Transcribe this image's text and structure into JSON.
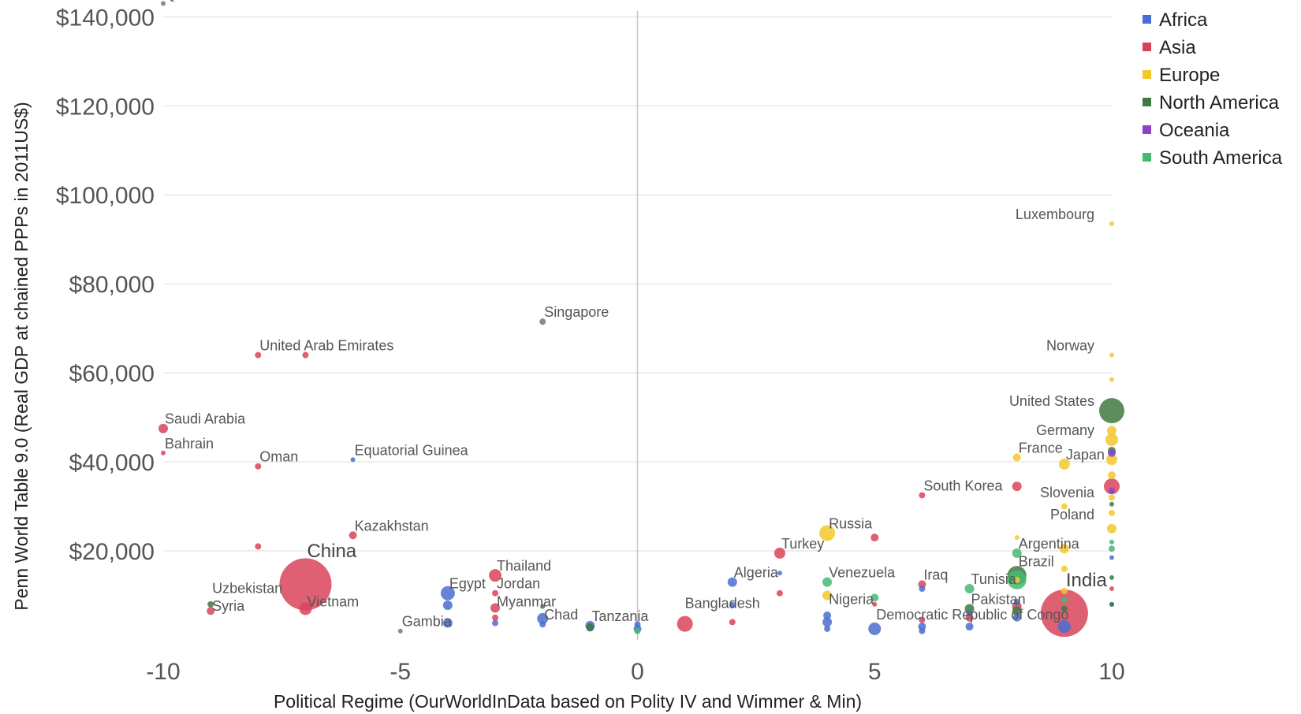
{
  "chart_data": {
    "type": "scatter",
    "title": "",
    "xlabel": "Political Regime (OurWorldInData based on Polity IV and Wimmer & Min)",
    "ylabel": "Penn World Table 9.0 (Real GDP at chained PPPs in 2011US$)",
    "xlim": [
      -10,
      10
    ],
    "ylim": [
      0,
      142000
    ],
    "x_ticks": [
      -10,
      -5,
      0,
      5,
      10
    ],
    "y_ticks": [
      20000,
      40000,
      60000,
      80000,
      100000,
      120000,
      140000
    ],
    "y_tick_labels": [
      "$20,000",
      "$40,000",
      "$60,000",
      "$80,000",
      "$100,000",
      "$120,000",
      "$140,000"
    ],
    "x_tick_labels": [
      "-10",
      "-5",
      "0",
      "5",
      "10"
    ],
    "grid": true,
    "legend_position": "top-right",
    "series": [
      {
        "name": "Africa",
        "color": "#4a6fd0",
        "points": [
          {
            "x": -4,
            "y": 10500,
            "r": 9
          },
          {
            "x": -4,
            "y": 7800,
            "r": 6
          },
          {
            "x": -4,
            "y": 3800,
            "r": 6
          },
          {
            "x": -3,
            "y": 3800,
            "r": 4
          },
          {
            "x": -2,
            "y": 4800,
            "r": 7
          },
          {
            "x": -2,
            "y": 3500,
            "r": 4
          },
          {
            "x": -1,
            "y": 3200,
            "r": 6
          },
          {
            "x": 0,
            "y": 2500,
            "r": 5
          },
          {
            "x": 0,
            "y": 3500,
            "r": 4
          },
          {
            "x": -6,
            "y": 40500,
            "r": 3
          },
          {
            "x": 2,
            "y": 13000,
            "r": 6
          },
          {
            "x": 2,
            "y": 7800,
            "r": 4
          },
          {
            "x": 3,
            "y": 15000,
            "r": 3
          },
          {
            "x": 4,
            "y": 4000,
            "r": 6
          },
          {
            "x": 4,
            "y": 2500,
            "r": 4
          },
          {
            "x": 4,
            "y": 5500,
            "r": 5
          },
          {
            "x": 5,
            "y": 2500,
            "r": 8
          },
          {
            "x": 6,
            "y": 3000,
            "r": 5
          },
          {
            "x": 6,
            "y": 2000,
            "r": 4
          },
          {
            "x": 6,
            "y": 11500,
            "r": 4
          },
          {
            "x": 7,
            "y": 3000,
            "r": 5
          },
          {
            "x": 7,
            "y": 6000,
            "r": 4
          },
          {
            "x": 8,
            "y": 5000,
            "r": 5
          },
          {
            "x": 8,
            "y": 8500,
            "r": 4
          },
          {
            "x": 9,
            "y": 3000,
            "r": 8
          },
          {
            "x": 10,
            "y": 18500,
            "r": 3
          },
          {
            "x": 10,
            "y": 8000,
            "r": 3
          },
          {
            "x": -1,
            "y": 2800,
            "r": 5
          }
        ]
      },
      {
        "name": "Asia",
        "color": "#d9435a",
        "points": [
          {
            "x": -7,
            "y": 12500,
            "r": 33
          },
          {
            "x": -7,
            "y": 7000,
            "r": 8
          },
          {
            "x": -8,
            "y": 64000,
            "r": 4
          },
          {
            "x": -7,
            "y": 64000,
            "r": 4
          },
          {
            "x": -10,
            "y": 47500,
            "r": 6
          },
          {
            "x": -10,
            "y": 42000,
            "r": 3
          },
          {
            "x": -8,
            "y": 39000,
            "r": 4
          },
          {
            "x": -8,
            "y": 21000,
            "r": 4
          },
          {
            "x": -6,
            "y": 23500,
            "r": 5
          },
          {
            "x": -9,
            "y": 6500,
            "r": 5
          },
          {
            "x": -3,
            "y": 14500,
            "r": 8
          },
          {
            "x": -3,
            "y": 10500,
            "r": 4
          },
          {
            "x": -3,
            "y": 7200,
            "r": 6
          },
          {
            "x": -3,
            "y": 5000,
            "r": 4
          },
          {
            "x": 1,
            "y": 3600,
            "r": 10
          },
          {
            "x": 2,
            "y": 4000,
            "r": 4
          },
          {
            "x": 3,
            "y": 19500,
            "r": 7
          },
          {
            "x": 3,
            "y": 10500,
            "r": 4
          },
          {
            "x": 5,
            "y": 23000,
            "r": 5
          },
          {
            "x": 5,
            "y": 8000,
            "r": 3
          },
          {
            "x": 6,
            "y": 32500,
            "r": 4
          },
          {
            "x": 6,
            "y": 12500,
            "r": 5
          },
          {
            "x": 6,
            "y": 4500,
            "r": 4
          },
          {
            "x": 7,
            "y": 5000,
            "r": 5
          },
          {
            "x": 8,
            "y": 34500,
            "r": 6
          },
          {
            "x": 8,
            "y": 7500,
            "r": 6
          },
          {
            "x": 9,
            "y": 6000,
            "r": 30
          },
          {
            "x": 10,
            "y": 34500,
            "r": 10
          },
          {
            "x": 10,
            "y": 11500,
            "r": 3
          }
        ]
      },
      {
        "name": "Europe",
        "color": "#f3c82b",
        "points": [
          {
            "x": 10,
            "y": 93500,
            "r": 3
          },
          {
            "x": 10,
            "y": 64000,
            "r": 3
          },
          {
            "x": 10,
            "y": 58500,
            "r": 3
          },
          {
            "x": 10,
            "y": 47000,
            "r": 6
          },
          {
            "x": 10,
            "y": 45000,
            "r": 8
          },
          {
            "x": 10,
            "y": 40500,
            "r": 7
          },
          {
            "x": 10,
            "y": 37000,
            "r": 5
          },
          {
            "x": 10,
            "y": 28500,
            "r": 4
          },
          {
            "x": 10,
            "y": 25000,
            "r": 6
          },
          {
            "x": 10,
            "y": 32000,
            "r": 4
          },
          {
            "x": 9,
            "y": 39500,
            "r": 7
          },
          {
            "x": 9,
            "y": 30000,
            "r": 4
          },
          {
            "x": 9,
            "y": 20500,
            "r": 6
          },
          {
            "x": 9,
            "y": 16000,
            "r": 4
          },
          {
            "x": 9,
            "y": 11000,
            "r": 4
          },
          {
            "x": 8,
            "y": 23000,
            "r": 3
          },
          {
            "x": 8,
            "y": 13500,
            "r": 4
          },
          {
            "x": 4,
            "y": 24000,
            "r": 10
          },
          {
            "x": 4,
            "y": 10000,
            "r": 6
          },
          {
            "x": 8,
            "y": 41000,
            "r": 5
          }
        ]
      },
      {
        "name": "North America",
        "color": "#3e7a3f",
        "points": [
          {
            "x": 10,
            "y": 51500,
            "r": 16
          },
          {
            "x": 10,
            "y": 42500,
            "r": 5
          },
          {
            "x": 10,
            "y": 30500,
            "r": 3
          },
          {
            "x": 10,
            "y": 14000,
            "r": 3
          },
          {
            "x": 8,
            "y": 14500,
            "r": 12
          },
          {
            "x": 8,
            "y": 6500,
            "r": 6
          },
          {
            "x": 7,
            "y": 7000,
            "r": 6
          },
          {
            "x": -9,
            "y": 8000,
            "r": 4
          },
          {
            "x": -1,
            "y": 2800,
            "r": 5
          },
          {
            "x": 9,
            "y": 7000,
            "r": 4
          },
          {
            "x": 10,
            "y": 8000,
            "r": 3
          },
          {
            "x": -2,
            "y": 7500,
            "r": 3
          }
        ]
      },
      {
        "name": "Oceania",
        "color": "#8a44c8",
        "points": [
          {
            "x": 10,
            "y": 42000,
            "r": 5
          },
          {
            "x": 10,
            "y": 33500,
            "r": 4
          }
        ]
      },
      {
        "name": "South America",
        "color": "#45b872",
        "points": [
          {
            "x": 8,
            "y": 19500,
            "r": 6
          },
          {
            "x": 8,
            "y": 13500,
            "r": 12
          },
          {
            "x": 7,
            "y": 11500,
            "r": 6
          },
          {
            "x": 5,
            "y": 9500,
            "r": 5
          },
          {
            "x": 4,
            "y": 13000,
            "r": 6
          },
          {
            "x": 10,
            "y": 20500,
            "r": 4
          },
          {
            "x": 10,
            "y": 22000,
            "r": 3
          },
          {
            "x": 9,
            "y": 9000,
            "r": 4
          },
          {
            "x": 0,
            "y": 2000,
            "r": 4
          }
        ]
      }
    ],
    "grey_points": [
      {
        "x": -10,
        "y": 143000,
        "r": 3
      },
      {
        "x": -2,
        "y": 71500,
        "r": 4
      },
      {
        "x": -5,
        "y": 2000,
        "r": 3
      }
    ],
    "annotations": [
      {
        "text": "Qatar",
        "x": -10,
        "y": 143000
      },
      {
        "text": "Singapore",
        "x": -2,
        "y": 71500
      },
      {
        "text": "United Arab Emirates",
        "x": -8,
        "y": 64000
      },
      {
        "text": "Saudi Arabia",
        "x": -10,
        "y": 47500
      },
      {
        "text": "Bahrain",
        "x": -10,
        "y": 42000
      },
      {
        "text": "Oman",
        "x": -8,
        "y": 39000
      },
      {
        "text": "Equatorial Guinea",
        "x": -6,
        "y": 40500
      },
      {
        "text": "Kazakhstan",
        "x": -6,
        "y": 23500
      },
      {
        "text": "China",
        "x": -7,
        "y": 17500
      },
      {
        "text": "Uzbekistan",
        "x": -9,
        "y": 9500
      },
      {
        "text": "Syria",
        "x": -9,
        "y": 5500
      },
      {
        "text": "Vietnam",
        "x": -7,
        "y": 6500
      },
      {
        "text": "Thailand",
        "x": -3,
        "y": 14500
      },
      {
        "text": "Egypt",
        "x": -4,
        "y": 10500
      },
      {
        "text": "Jordan",
        "x": -3,
        "y": 10500
      },
      {
        "text": "Myanmar",
        "x": -3,
        "y": 6500
      },
      {
        "text": "Gambia",
        "x": -5,
        "y": 2000
      },
      {
        "text": "Chad",
        "x": -2,
        "y": 3500
      },
      {
        "text": "Tanzania",
        "x": -1,
        "y": 3200
      },
      {
        "text": "Bangladesh",
        "x": 1,
        "y": 3600
      },
      {
        "text": "Algeria",
        "x": 2,
        "y": 13000
      },
      {
        "text": "Turkey",
        "x": 3,
        "y": 19500
      },
      {
        "text": "Russia",
        "x": 4,
        "y": 24000
      },
      {
        "text": "Venezuela",
        "x": 4,
        "y": 13000
      },
      {
        "text": "Nigeria",
        "x": 4,
        "y": 7000
      },
      {
        "text": "Iraq",
        "x": 6,
        "y": 12500
      },
      {
        "text": "Democratic Republic of Congo",
        "x": 5,
        "y": 2500
      },
      {
        "text": "Tunisia",
        "x": 7,
        "y": 11500
      },
      {
        "text": "Pakistan",
        "x": 7,
        "y": 7000
      },
      {
        "text": "India",
        "x": 9,
        "y": 11000
      },
      {
        "text": "South Korea",
        "x": 6,
        "y": 32500
      },
      {
        "text": "Argentina",
        "x": 8,
        "y": 19500
      },
      {
        "text": "Brazil",
        "x": 8,
        "y": 15500
      },
      {
        "text": "Luxembourg",
        "x": 10,
        "y": 93500
      },
      {
        "text": "Norway",
        "x": 10,
        "y": 64000
      },
      {
        "text": "United States",
        "x": 10,
        "y": 51500
      },
      {
        "text": "Germany",
        "x": 10,
        "y": 45000
      },
      {
        "text": "France",
        "x": 8,
        "y": 41000
      },
      {
        "text": "Japan",
        "x": 9,
        "y": 39500
      },
      {
        "text": "Slovenia",
        "x": 10,
        "y": 31000
      },
      {
        "text": "Poland",
        "x": 10,
        "y": 26000
      }
    ]
  }
}
